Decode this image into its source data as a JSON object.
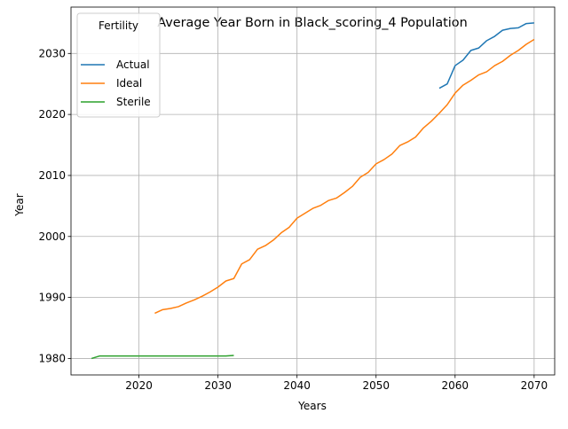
{
  "chart_data": {
    "type": "line",
    "title": "Average Year Born in Black_scoring_4 Population",
    "xlabel": "Years",
    "ylabel": "Year",
    "xlim": [
      2011.4,
      2072.6
    ],
    "ylim": [
      1977.3,
      2037.6
    ],
    "xticks": [
      2020,
      2030,
      2040,
      2050,
      2060,
      2070
    ],
    "yticks": [
      1980,
      1990,
      2000,
      2010,
      2020,
      2030
    ],
    "grid": true,
    "legend": {
      "title": "Fertility",
      "position": "top-left"
    },
    "series": [
      {
        "name": "Actual",
        "color": "#1f77b4",
        "x": [
          2058,
          2059,
          2060,
          2061,
          2062,
          2063,
          2064,
          2065,
          2066,
          2067,
          2068,
          2069,
          2070
        ],
        "y": [
          2024.3,
          2025.0,
          2028.0,
          2028.9,
          2030.5,
          2030.9,
          2032.1,
          2032.8,
          2033.8,
          2034.1,
          2034.2,
          2034.9,
          2035.0
        ]
      },
      {
        "name": "Ideal",
        "color": "#ff7f0e",
        "x": [
          2022,
          2023,
          2024,
          2025,
          2026,
          2027,
          2028,
          2029,
          2030,
          2031,
          2032,
          2033,
          2034,
          2035,
          2036,
          2037,
          2038,
          2039,
          2040,
          2041,
          2042,
          2043,
          2044,
          2045,
          2046,
          2047,
          2048,
          2049,
          2050,
          2051,
          2052,
          2053,
          2054,
          2055,
          2056,
          2057,
          2058,
          2059,
          2060,
          2061,
          2062,
          2063,
          2064,
          2065,
          2066,
          2067,
          2068,
          2069,
          2070
        ],
        "y": [
          1987.4,
          1988.0,
          1988.2,
          1988.5,
          1989.1,
          1989.6,
          1990.2,
          1990.9,
          1991.7,
          1992.7,
          1993.1,
          1995.5,
          1996.2,
          1997.9,
          1998.5,
          1999.4,
          2000.6,
          2001.5,
          2003.0,
          2003.8,
          2004.6,
          2005.1,
          2005.9,
          2006.3,
          2007.2,
          2008.2,
          2009.7,
          2010.5,
          2011.9,
          2012.6,
          2013.5,
          2014.9,
          2015.5,
          2016.3,
          2017.8,
          2018.9,
          2020.2,
          2021.6,
          2023.5,
          2024.8,
          2025.6,
          2026.5,
          2027.0,
          2028.0,
          2028.7,
          2029.7,
          2030.5,
          2031.5,
          2032.3
        ]
      },
      {
        "name": "Sterile",
        "color": "#2ca02c",
        "x": [
          2014,
          2015,
          2016,
          2017,
          2018,
          2019,
          2020,
          2021,
          2022,
          2023,
          2024,
          2025,
          2026,
          2027,
          2028,
          2029,
          2030,
          2031,
          2032
        ],
        "y": [
          1980.0,
          1980.4,
          1980.4,
          1980.4,
          1980.4,
          1980.4,
          1980.4,
          1980.4,
          1980.4,
          1980.4,
          1980.4,
          1980.4,
          1980.4,
          1980.4,
          1980.4,
          1980.4,
          1980.4,
          1980.4,
          1980.5
        ]
      }
    ]
  }
}
